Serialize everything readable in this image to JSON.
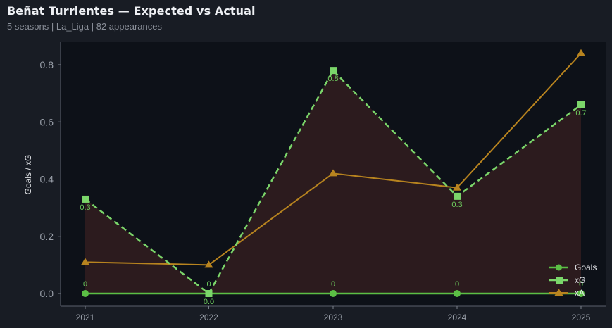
{
  "header": {
    "title": "Beñat Turrientes — Expected vs Actual",
    "subtitle": "5 seasons | La_Liga | 82 appearances"
  },
  "colors": {
    "background": "#181c24",
    "plot_background": "#0d1118",
    "goals": "#5bbf45",
    "xg": "#7bd66a",
    "xa": "#b8841f",
    "fill": "#2e1c1f"
  },
  "chart_data": {
    "type": "line",
    "title": "Beñat Turrientes — Expected vs Actual",
    "subtitle": "5 seasons | La_Liga | 82 appearances",
    "xlabel": "",
    "ylabel": "Goals / xG",
    "categories": [
      "2021",
      "2022",
      "2023",
      "2024",
      "2025"
    ],
    "yticks": [
      "0.0",
      "0.2",
      "0.4",
      "0.6",
      "0.8"
    ],
    "ylim": [
      -0.04,
      0.88
    ],
    "grid": false,
    "legend_position": "lower right",
    "series": [
      {
        "name": "Goals",
        "values": [
          0,
          0,
          0,
          0,
          0
        ],
        "marker": "circle",
        "style": "solid",
        "labels": [
          "0",
          "0",
          "0",
          "0",
          "0"
        ]
      },
      {
        "name": "xG",
        "values": [
          0.33,
          0.0,
          0.78,
          0.34,
          0.66
        ],
        "marker": "square",
        "style": "dashed",
        "labels": [
          "0.3",
          "0.0",
          "0.8",
          "0.3",
          "0.7"
        ]
      },
      {
        "name": "xA",
        "values": [
          0.11,
          0.1,
          0.42,
          0.37,
          0.84
        ],
        "marker": "triangle",
        "style": "solid"
      }
    ],
    "shaded_area": "between Goals and xG"
  }
}
